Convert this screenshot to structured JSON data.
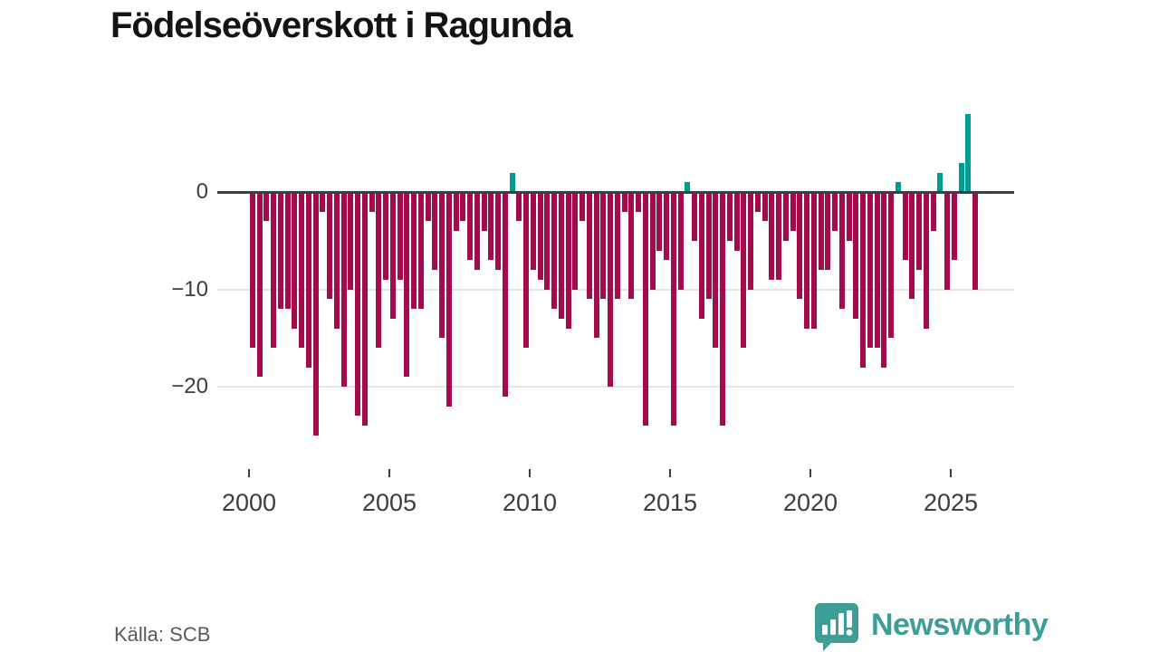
{
  "title": "Födelseöverskott i Ragunda",
  "source": "Källa: SCB",
  "branding": {
    "name": "Newsworthy"
  },
  "colors": {
    "negative_bar": "#a30b4d",
    "positive_bar": "#009b91",
    "axis_line": "#3a3f3f",
    "gridline": "#e4e4e4",
    "tick_text": "#3d3d3d",
    "brand_teal": "#3d9e97"
  },
  "chart_data": {
    "type": "bar",
    "title": "Födelseöverskott i Ragunda",
    "xlabel": "",
    "ylabel": "",
    "period": "quarterly",
    "start_year": 2000,
    "x_tick_years": [
      2000,
      2005,
      2010,
      2015,
      2020,
      2025
    ],
    "x_tick_labels": [
      "2000",
      "2005",
      "2010",
      "2015",
      "2020",
      "2025"
    ],
    "y_ticks": [
      0,
      -10,
      -20
    ],
    "y_tick_labels": [
      "0",
      "−10",
      "−20"
    ],
    "ylim": [
      -26,
      9
    ],
    "grid": "horizontal",
    "legend": "none",
    "values": [
      -16,
      -19,
      -3,
      -16,
      -12,
      -12,
      -14,
      -16,
      -18,
      -25,
      -2,
      -11,
      -14,
      -20,
      -10,
      -23,
      -24,
      -2,
      -16,
      -9,
      -13,
      -9,
      -19,
      -12,
      -12,
      -3,
      -8,
      -15,
      -22,
      -4,
      -3,
      -7,
      -8,
      -4,
      -7,
      -8,
      -21,
      2,
      -3,
      -16,
      -8,
      -9,
      -10,
      -12,
      -13,
      -14,
      -10,
      -3,
      -11,
      -15,
      -11,
      -20,
      -11,
      -2,
      -11,
      -2,
      -24,
      -10,
      -6,
      -7,
      -24,
      -10,
      1,
      -5,
      -13,
      -11,
      -16,
      -24,
      -5,
      -6,
      -16,
      -10,
      -2,
      -3,
      -9,
      -9,
      -5,
      -4,
      -11,
      -14,
      -14,
      -8,
      -8,
      -4,
      -12,
      -5,
      -13,
      -18,
      -16,
      -16,
      -18,
      -15,
      1,
      -7,
      -11,
      -8,
      -14,
      -4,
      2,
      -10,
      -7,
      3,
      8,
      -10
    ]
  }
}
